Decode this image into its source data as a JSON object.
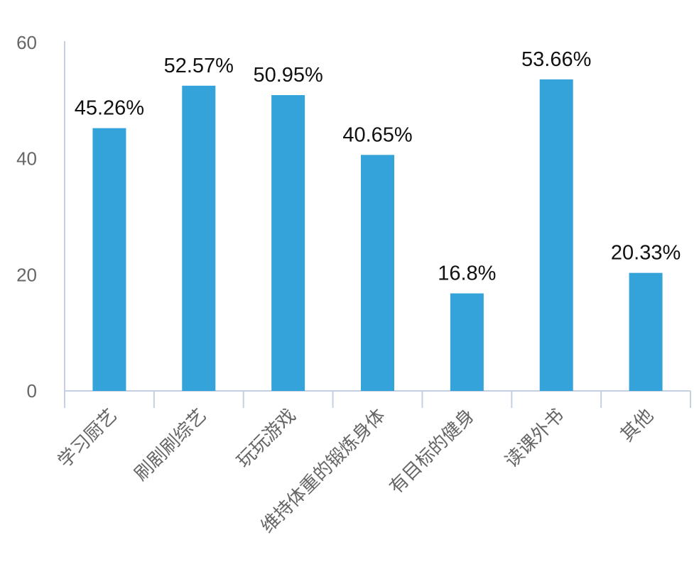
{
  "chart_data": {
    "type": "bar",
    "categories": [
      "学习厨艺",
      "刷剧刷综艺",
      "玩玩游戏",
      "维持体重的锻炼身体",
      "有目标的健身",
      "读课外书",
      "其他"
    ],
    "values": [
      45.26,
      52.57,
      50.95,
      40.65,
      16.8,
      53.66,
      20.33
    ],
    "data_labels": [
      "45.26%",
      "52.57%",
      "50.95%",
      "40.65%",
      "16.8%",
      "53.66%",
      "20.33%"
    ],
    "title": "",
    "xlabel": "",
    "ylabel": "",
    "ylim": [
      0,
      60
    ],
    "yticks": [
      0,
      20,
      40,
      60
    ],
    "grid": false,
    "legend": "none",
    "colors": {
      "bar": "#33A3DA",
      "axis": "#C5D1E0",
      "tick_text": "#666666",
      "label_text": "#111111"
    }
  }
}
